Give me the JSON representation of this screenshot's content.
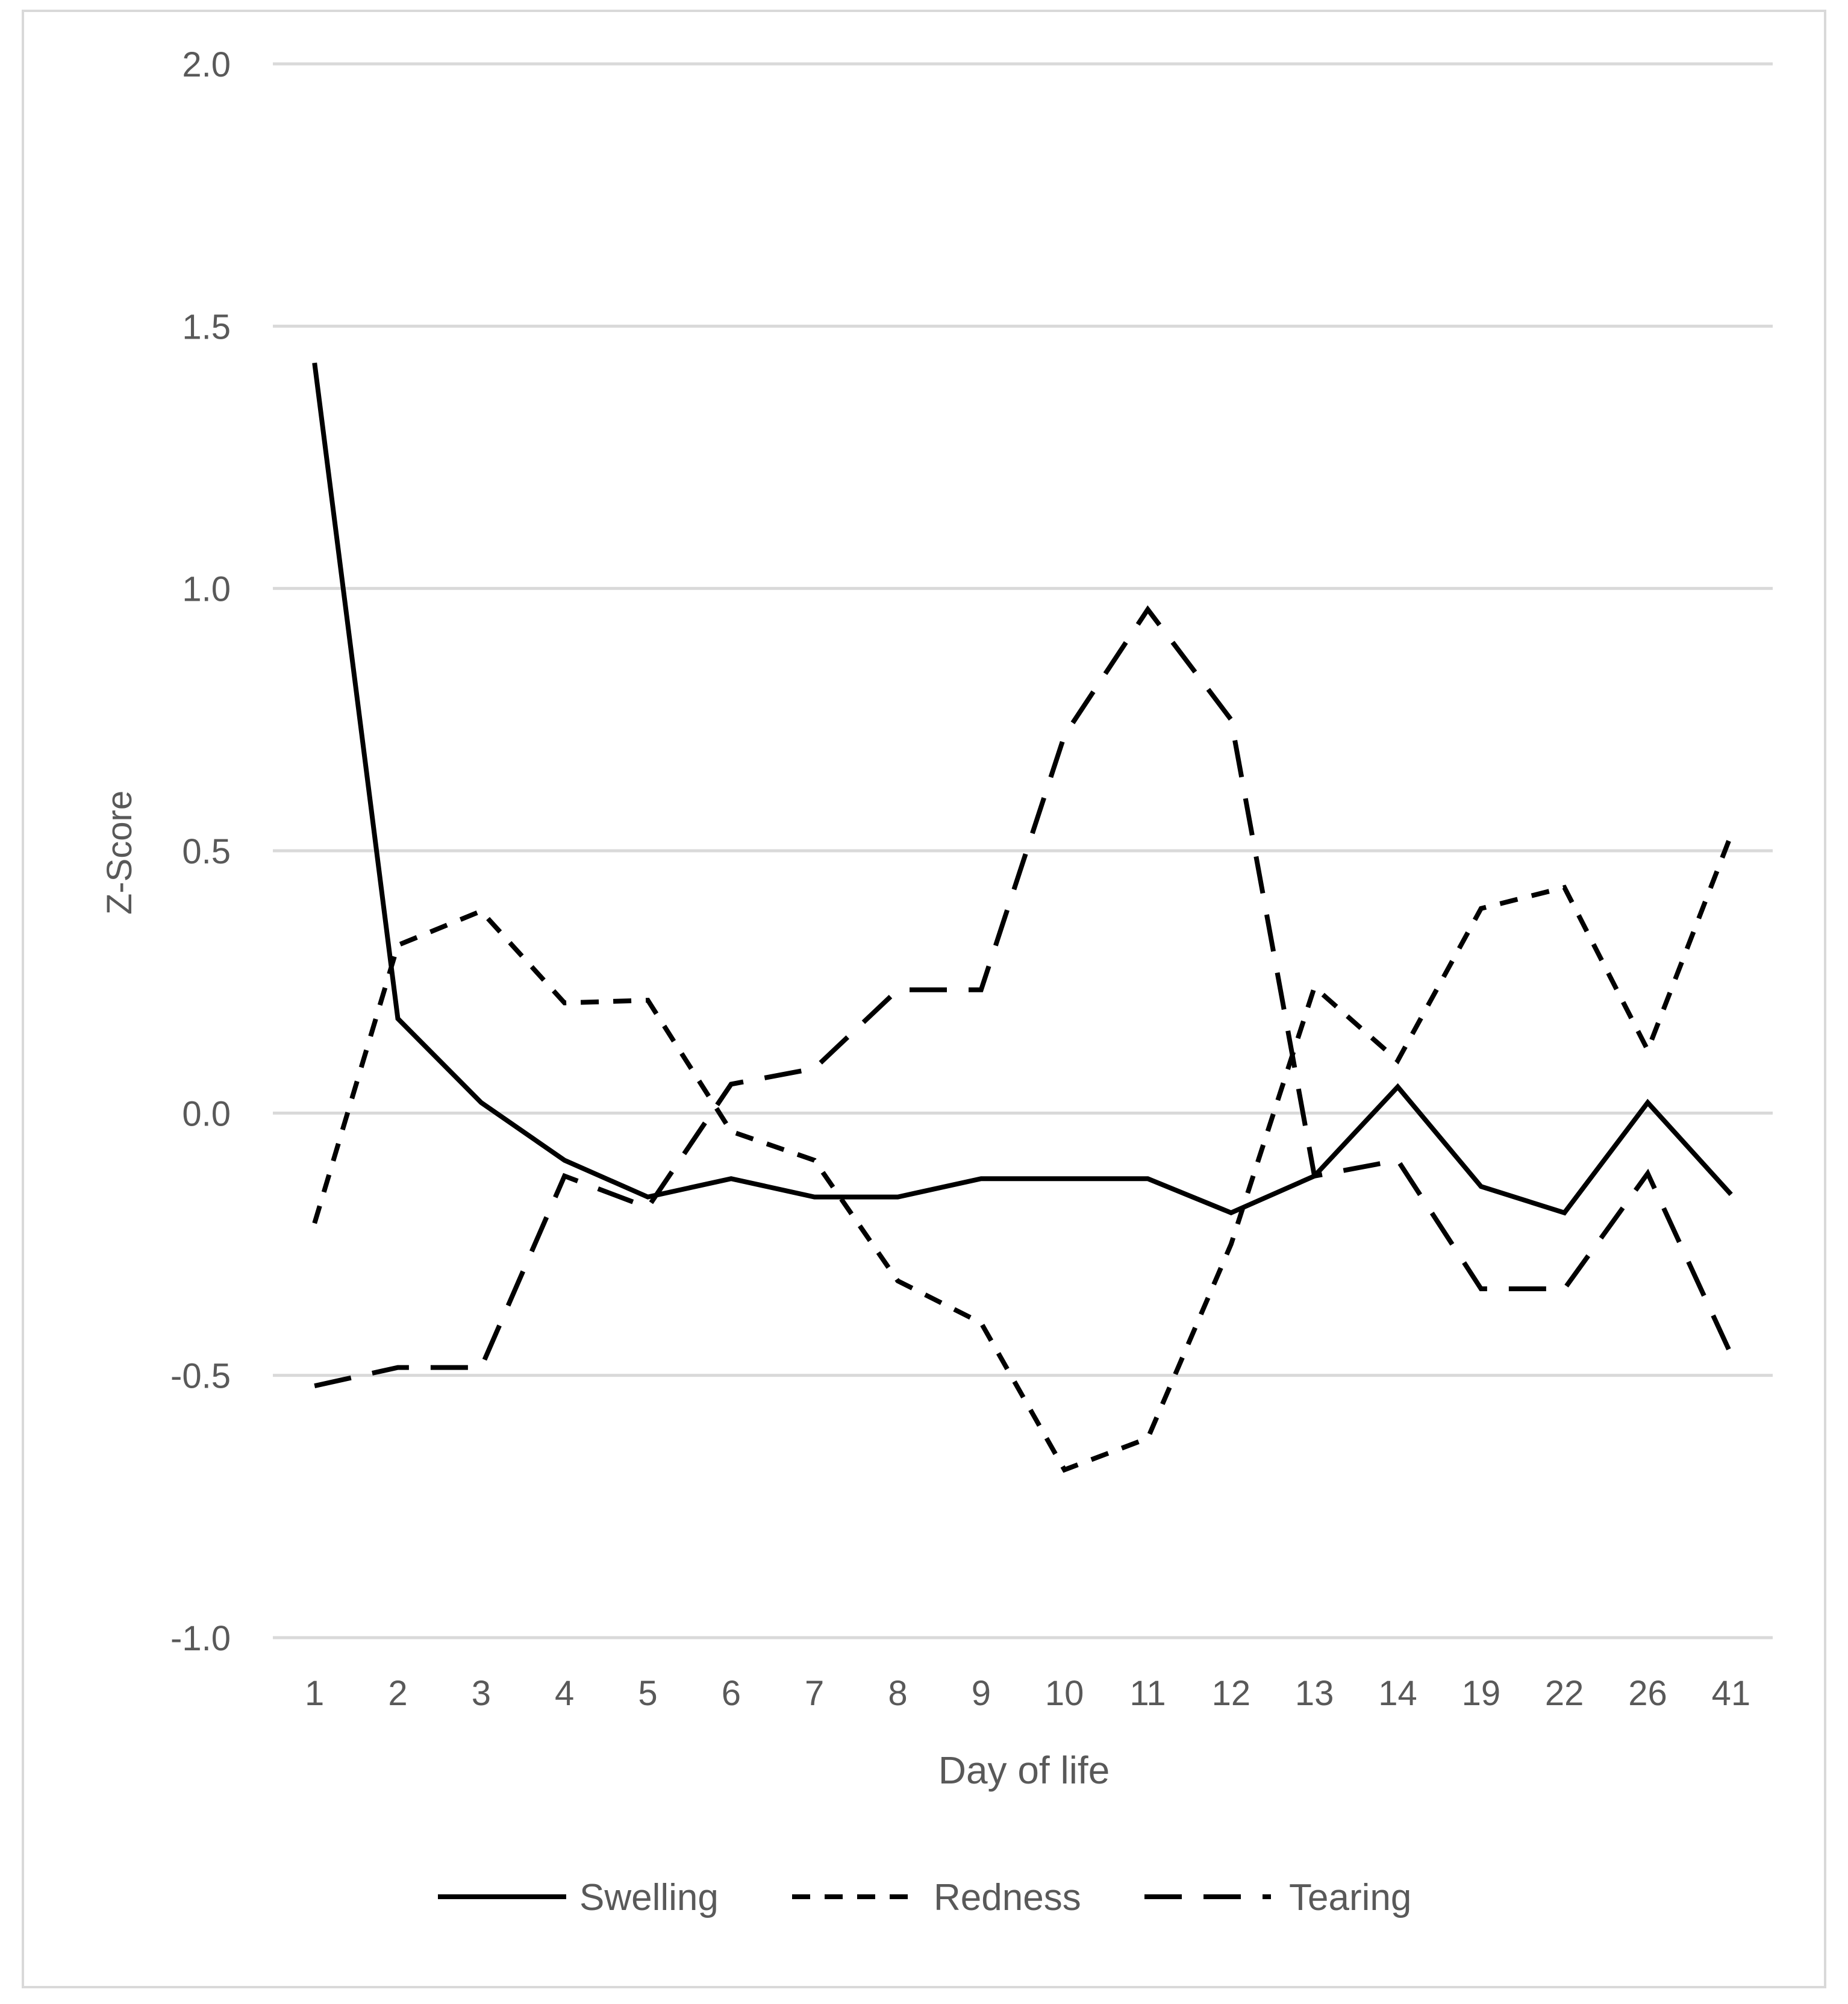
{
  "chart_data": {
    "type": "line",
    "title": "",
    "xlabel": "Day of life",
    "ylabel": "Z-Score",
    "categories": [
      "1",
      "2",
      "3",
      "4",
      "5",
      "6",
      "7",
      "8",
      "9",
      "10",
      "11",
      "12",
      "13",
      "14",
      "19",
      "22",
      "26",
      "41"
    ],
    "y_ticks": [
      "2.0",
      "1.5",
      "1.0",
      "0.5",
      "0.0",
      "-0.5",
      "-1.0"
    ],
    "ylim": [
      -1.0,
      2.0
    ],
    "grid": true,
    "legend_position": "bottom",
    "series": [
      {
        "name": "Swelling",
        "line_style": "solid",
        "values": [
          1.43,
          0.18,
          0.02,
          -0.09,
          -0.16,
          -0.125,
          -0.16,
          -0.16,
          -0.125,
          -0.125,
          -0.125,
          -0.19,
          -0.12,
          0.05,
          -0.14,
          -0.19,
          0.02,
          -0.155
        ]
      },
      {
        "name": "Redness",
        "line_style": "short-dash",
        "values": [
          -0.21,
          0.32,
          0.385,
          0.21,
          0.215,
          -0.035,
          -0.09,
          -0.32,
          -0.4,
          -0.68,
          -0.62,
          -0.25,
          0.24,
          0.1,
          0.39,
          0.43,
          0.12,
          0.53
        ]
      },
      {
        "name": "Tearing",
        "line_style": "long-dash",
        "values": [
          -0.52,
          -0.485,
          -0.485,
          -0.12,
          -0.18,
          0.055,
          0.085,
          0.235,
          0.235,
          0.72,
          0.96,
          0.75,
          -0.12,
          -0.09,
          -0.335,
          -0.335,
          -0.115,
          -0.46
        ]
      }
    ],
    "colors": {
      "line": "#000000",
      "grid": "#d9d9d9",
      "text": "#595959",
      "frame": "#d9d9d9"
    }
  }
}
